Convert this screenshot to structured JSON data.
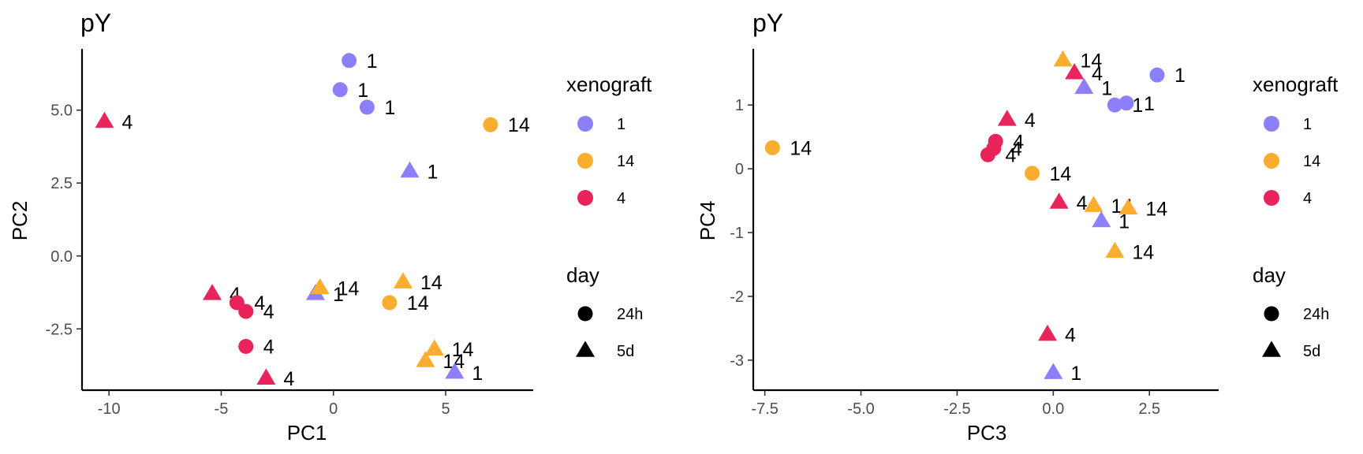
{
  "chart_data": [
    {
      "type": "scatter",
      "title": "pY",
      "xlabel": "PC1",
      "ylabel": "PC2",
      "xlim": [
        -11.2,
        8.9
      ],
      "ylim": [
        -4.6,
        7.1
      ],
      "xticks": [
        -10,
        -5,
        0,
        5
      ],
      "xtick_labels": [
        "-10",
        "-5",
        "0",
        "5"
      ],
      "yticks": [
        -2.5,
        0.0,
        2.5,
        5.0
      ],
      "ytick_labels": [
        "-2.5",
        "0.0",
        "2.5",
        "5.0"
      ],
      "points": [
        {
          "x": 0.7,
          "y": 6.7,
          "xenograft": "1",
          "day": "24h",
          "label": "1"
        },
        {
          "x": 0.3,
          "y": 5.7,
          "xenograft": "1",
          "day": "24h",
          "label": "1"
        },
        {
          "x": 1.5,
          "y": 5.1,
          "xenograft": "1",
          "day": "24h",
          "label": "1"
        },
        {
          "x": -10.2,
          "y": 4.6,
          "xenograft": "4",
          "day": "5d",
          "label": "4"
        },
        {
          "x": 7.0,
          "y": 4.5,
          "xenograft": "14",
          "day": "24h",
          "label": "14"
        },
        {
          "x": 3.4,
          "y": 2.9,
          "xenograft": "1",
          "day": "5d",
          "label": "1"
        },
        {
          "x": -5.4,
          "y": -1.3,
          "xenograft": "4",
          "day": "5d",
          "label": "4"
        },
        {
          "x": -4.3,
          "y": -1.6,
          "xenograft": "4",
          "day": "24h",
          "label": "4"
        },
        {
          "x": -3.9,
          "y": -1.9,
          "xenograft": "4",
          "day": "24h",
          "label": "4"
        },
        {
          "x": -3.9,
          "y": -3.1,
          "xenograft": "4",
          "day": "24h",
          "label": "4"
        },
        {
          "x": -3.0,
          "y": -4.2,
          "xenograft": "4",
          "day": "5d",
          "label": "4"
        },
        {
          "x": -0.8,
          "y": -1.3,
          "xenograft": "1",
          "day": "5d",
          "label": "1"
        },
        {
          "x": -0.6,
          "y": -1.1,
          "xenograft": "14",
          "day": "5d",
          "label": "14"
        },
        {
          "x": 3.1,
          "y": -0.9,
          "xenograft": "14",
          "day": "5d",
          "label": "14"
        },
        {
          "x": 2.5,
          "y": -1.6,
          "xenograft": "14",
          "day": "24h",
          "label": "14"
        },
        {
          "x": 4.5,
          "y": -3.2,
          "xenograft": "14",
          "day": "5d",
          "label": "14"
        },
        {
          "x": 4.1,
          "y": -3.6,
          "xenograft": "14",
          "day": "5d",
          "label": "14"
        },
        {
          "x": 5.4,
          "y": -4.0,
          "xenograft": "1",
          "day": "5d",
          "label": "1"
        }
      ]
    },
    {
      "type": "scatter",
      "title": "pY",
      "xlabel": "PC3",
      "ylabel": "PC4",
      "xlim": [
        -7.8,
        4.3
      ],
      "ylim": [
        -3.47,
        1.88
      ],
      "xticks": [
        -7.5,
        -5.0,
        -2.5,
        0.0,
        2.5
      ],
      "xtick_labels": [
        "-7.5",
        "-5.0",
        "-2.5",
        "0.0",
        "2.5"
      ],
      "yticks": [
        -3,
        -2,
        -1,
        0,
        1
      ],
      "ytick_labels": [
        "-3",
        "-2",
        "-1",
        "0",
        "1"
      ],
      "points": [
        {
          "x": 0.25,
          "y": 1.7,
          "xenograft": "14",
          "day": "5d",
          "label": "14"
        },
        {
          "x": 0.55,
          "y": 1.5,
          "xenograft": "4",
          "day": "5d",
          "label": "4"
        },
        {
          "x": 0.8,
          "y": 1.27,
          "xenograft": "1",
          "day": "5d",
          "label": "1"
        },
        {
          "x": 2.7,
          "y": 1.47,
          "xenograft": "1",
          "day": "24h",
          "label": "1"
        },
        {
          "x": 1.6,
          "y": 1.0,
          "xenograft": "1",
          "day": "24h",
          "label": "1"
        },
        {
          "x": 1.9,
          "y": 1.03,
          "xenograft": "1",
          "day": "24h",
          "label": "1"
        },
        {
          "x": -1.2,
          "y": 0.77,
          "xenograft": "4",
          "day": "5d",
          "label": "4"
        },
        {
          "x": -7.3,
          "y": 0.33,
          "xenograft": "14",
          "day": "24h",
          "label": "14"
        },
        {
          "x": -1.5,
          "y": 0.43,
          "xenograft": "4",
          "day": "24h",
          "label": "4"
        },
        {
          "x": -1.55,
          "y": 0.32,
          "xenograft": "4",
          "day": "24h",
          "label": "4"
        },
        {
          "x": -1.7,
          "y": 0.22,
          "xenograft": "4",
          "day": "24h",
          "label": "4"
        },
        {
          "x": -0.55,
          "y": -0.07,
          "xenograft": "14",
          "day": "24h",
          "label": "14"
        },
        {
          "x": 0.15,
          "y": -0.53,
          "xenograft": "4",
          "day": "5d",
          "label": "4"
        },
        {
          "x": 1.05,
          "y": -0.58,
          "xenograft": "14",
          "day": "5d",
          "label": "14"
        },
        {
          "x": 1.95,
          "y": -0.62,
          "xenograft": "14",
          "day": "5d",
          "label": "14"
        },
        {
          "x": 1.25,
          "y": -0.82,
          "xenograft": "1",
          "day": "5d",
          "label": "1"
        },
        {
          "x": 1.6,
          "y": -1.3,
          "xenograft": "14",
          "day": "5d",
          "label": "14"
        },
        {
          "x": -0.15,
          "y": -2.6,
          "xenograft": "4",
          "day": "5d",
          "label": "4"
        },
        {
          "x": 0.0,
          "y": -3.2,
          "xenograft": "1",
          "day": "5d",
          "label": "1"
        }
      ]
    }
  ],
  "legend": {
    "color_title": "xenograft",
    "color_items": [
      {
        "label": "1",
        "color": "#8B80F9"
      },
      {
        "label": "14",
        "color": "#FBAD30"
      },
      {
        "label": "4",
        "color": "#E8245A"
      }
    ],
    "shape_title": "day",
    "shape_items": [
      {
        "label": "24h",
        "shape": "circle"
      },
      {
        "label": "5d",
        "shape": "triangle"
      }
    ]
  }
}
